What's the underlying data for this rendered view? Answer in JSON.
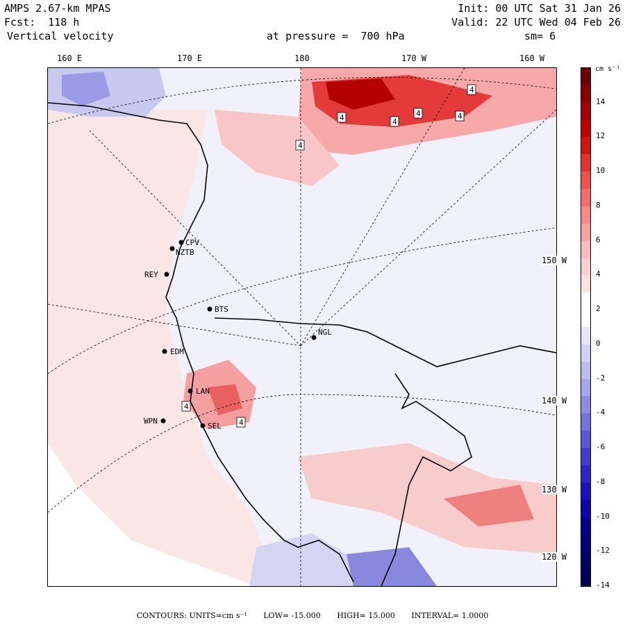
{
  "header": {
    "model": "AMPS 2.67-km MPAS",
    "forecast": "Fcst:  118 h",
    "field": "Vertical velocity",
    "init": "Init: 00 UTC Sat 31 Jan 26",
    "valid": "Valid: 22 UTC Wed 04 Feb 26",
    "level": "at pressure =  700 hPa",
    "smoothing": "sm= 6"
  },
  "longitude_labels": [
    "160 E",
    "170 E",
    "180",
    "170 W",
    "160 W"
  ],
  "latitude_labels": [
    "150 W",
    "140 W",
    "130 W",
    "120 W"
  ],
  "stations": [
    {
      "code": "CPV"
    },
    {
      "code": "NZTB"
    },
    {
      "code": "REY"
    },
    {
      "code": "BTS"
    },
    {
      "code": "NGL"
    },
    {
      "code": "EDM"
    },
    {
      "code": "LAN"
    },
    {
      "code": "WPN"
    },
    {
      "code": "SEL"
    }
  ],
  "contour_labels": [
    "4",
    "4",
    "4",
    "4",
    "4",
    "4",
    "4",
    "4"
  ],
  "colorbar": {
    "units": "cm s⁻¹",
    "ticks": [
      "14",
      "12",
      "10",
      "8",
      "6",
      "4",
      "2",
      "0",
      "-2",
      "-4",
      "-6",
      "-8",
      "-10",
      "-12",
      "-14"
    ],
    "colors": [
      "#6e0000",
      "#8c0000",
      "#a80000",
      "#c20000",
      "#d81010",
      "#e83030",
      "#f05050",
      "#f46c6c",
      "#f88888",
      "#faa2a2",
      "#fcbaba",
      "#fdd0d0",
      "#fee2e2",
      "#ffffff",
      "#ffffff",
      "#e6e6f8",
      "#d2d2f4",
      "#bcbcf0",
      "#a6a6ec",
      "#8c8ce6",
      "#7272e0",
      "#5858da",
      "#3e3ed4",
      "#2828ce",
      "#1414c2",
      "#0808aa",
      "#000094",
      "#00007e",
      "#000068",
      "#000058"
    ]
  },
  "footer": {
    "contours": "CONTOURS:  UNITS=cm s⁻¹",
    "low": "LOW=  -15.000",
    "high": "HIGH=  15.000",
    "interval": "INTERVAL=   1.0000"
  }
}
